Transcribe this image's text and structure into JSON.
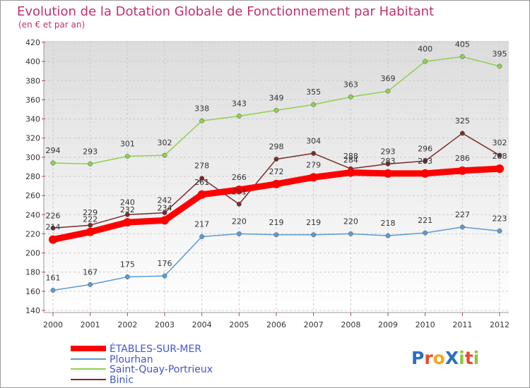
{
  "chart_data": {
    "type": "line",
    "title": "Evolution de la Dotation Globale de Fonctionnement par Habitant",
    "subtitle": "(en € et par an)",
    "categories": [
      "2000",
      "2001",
      "2002",
      "2003",
      "2004",
      "2005",
      "2006",
      "2007",
      "2008",
      "2009",
      "2010",
      "2011",
      "2012"
    ],
    "ylim": [
      140,
      420
    ],
    "yticks": [
      140,
      160,
      180,
      200,
      220,
      240,
      260,
      280,
      300,
      320,
      340,
      360,
      380,
      400,
      420
    ],
    "grid": true,
    "legend_position": "bottom-left",
    "series": [
      {
        "name": "ÉTABLES-SUR-MER",
        "color": "#ff0000",
        "values": [
          214,
          222,
          232,
          234,
          261,
          266,
          272,
          279,
          284,
          283,
          283,
          286,
          288
        ]
      },
      {
        "name": "Plourhan",
        "color": "#5b9bd5",
        "values": [
          161,
          167,
          175,
          176,
          217,
          220,
          219,
          219,
          220,
          218,
          221,
          227,
          223
        ]
      },
      {
        "name": "Saint-Quay-Portrieux",
        "color": "#8fd14f",
        "values": [
          294,
          293,
          301,
          302,
          338,
          343,
          349,
          355,
          363,
          369,
          400,
          405,
          395
        ]
      },
      {
        "name": "Binic",
        "color": "#7a2b2b",
        "values": [
          226,
          229,
          240,
          242,
          278,
          251,
          298,
          304,
          288,
          293,
          296,
          325,
          302
        ]
      }
    ]
  },
  "logo": {
    "text": "ProXiti"
  }
}
